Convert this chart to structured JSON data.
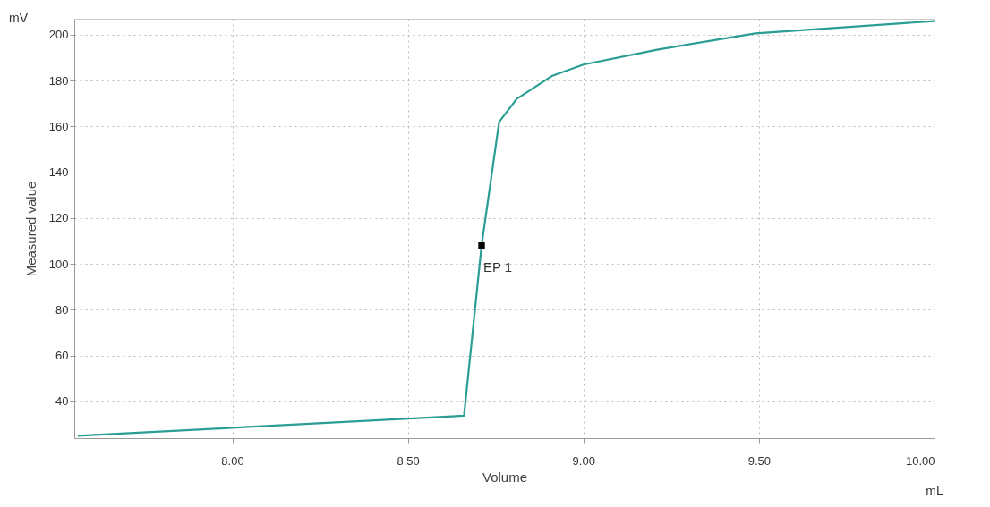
{
  "chart_data": {
    "type": "line",
    "xlabel": "Volume",
    "ylabel": "Measured value",
    "annotations": [
      "mV",
      "mL"
    ],
    "xlim": [
      7.55,
      10.0
    ],
    "ylim": [
      24,
      207
    ],
    "xticks": [
      {
        "value": 8,
        "label": "8.00"
      },
      {
        "value": 8.5,
        "label": "8.50"
      },
      {
        "value": 9,
        "label": "9.00"
      },
      {
        "value": 9.5,
        "label": "9.50"
      },
      {
        "value": 10,
        "label": "10.00"
      }
    ],
    "yticks": [
      40,
      60,
      80,
      100,
      120,
      140,
      160,
      180,
      200
    ],
    "grid": true,
    "series": [
      {
        "color": "#2a9d94",
        "x": [
          7.56,
          8.66,
          8.71,
          8.76,
          8.81,
          8.91,
          9.0,
          9.21,
          9.49,
          10.0
        ],
        "values": [
          25,
          33.8,
          108,
          162,
          172,
          182,
          187,
          193.5,
          200.6,
          206
        ]
      },
      {
        "type": "scatter",
        "name": "EP 1",
        "color": "#000000",
        "marker": "square",
        "x": [
          8.71
        ],
        "values": [
          108
        ]
      }
    ]
  }
}
